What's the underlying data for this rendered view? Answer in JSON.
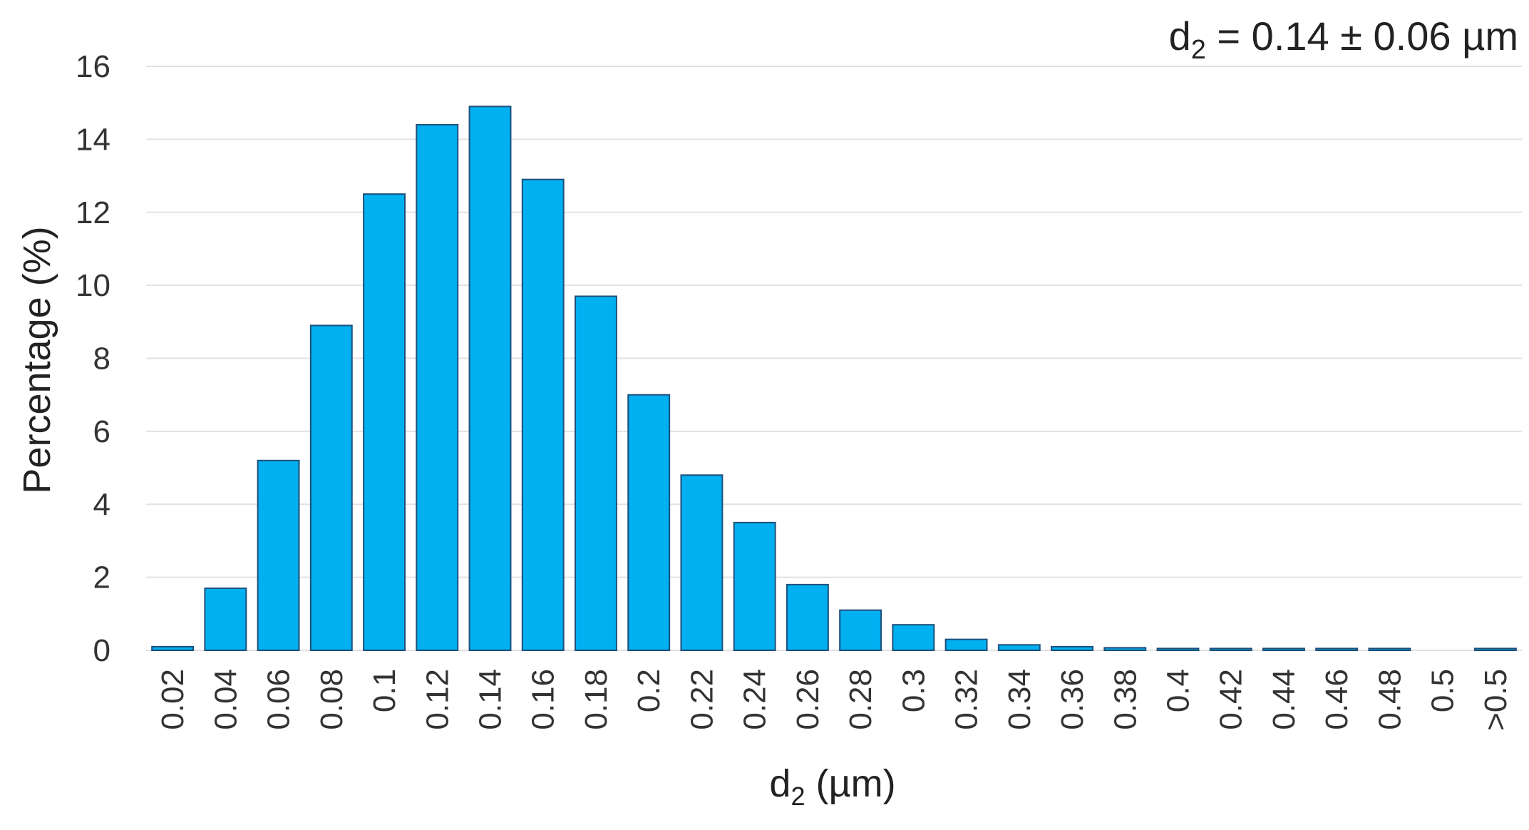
{
  "chart_data": {
    "type": "bar",
    "title": "",
    "annotation": {
      "prefix": "d",
      "subscript": "2",
      "suffix": " = 0.14 ± 0.06 µm"
    },
    "xlabel": {
      "prefix": "d",
      "subscript": "2",
      "suffix": " (µm)"
    },
    "ylabel": "Percentage (%)",
    "ylim": [
      0,
      16
    ],
    "yticks": [
      0,
      2,
      4,
      6,
      8,
      10,
      12,
      14,
      16
    ],
    "grid": true,
    "legend": "none",
    "bar_color": "#00b0f0",
    "categories": [
      "0.02",
      "0.04",
      "0.06",
      "0.08",
      "0.1",
      "0.12",
      "0.14",
      "0.16",
      "0.18",
      "0.2",
      "0.22",
      "0.24",
      "0.26",
      "0.28",
      "0.3",
      "0.32",
      "0.34",
      "0.36",
      "0.38",
      "0.4",
      "0.42",
      "0.44",
      "0.46",
      "0.48",
      "0.5",
      ">0.5"
    ],
    "values": [
      0.1,
      1.7,
      5.2,
      8.9,
      12.5,
      14.4,
      14.9,
      12.9,
      9.7,
      7.0,
      4.8,
      3.5,
      1.8,
      1.1,
      0.7,
      0.3,
      0.15,
      0.1,
      0.07,
      0.05,
      0.05,
      0.05,
      0.05,
      0.05,
      0,
      0.05
    ]
  }
}
